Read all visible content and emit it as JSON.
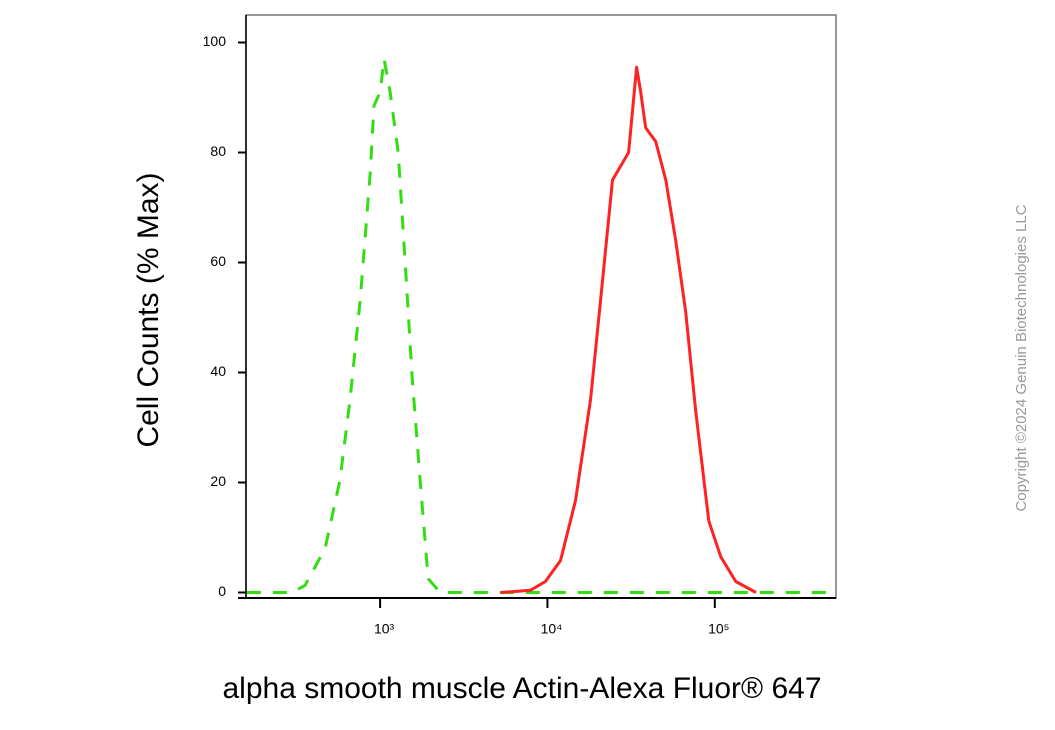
{
  "chart_data": {
    "type": "line",
    "xlabel": "alpha smooth muscle Actin-Alexa Fluor® 647",
    "ylabel": "Cell Counts (% Max)",
    "copyright": "Copyright ©2024 Genuin Biotechnologies LLC",
    "xscale": "log",
    "xlim": [
      158,
      530000
    ],
    "ylim": [
      -1,
      105
    ],
    "xticks": [
      {
        "value": 1000,
        "label": "10³"
      },
      {
        "value": 10000,
        "label": "10⁴"
      },
      {
        "value": 100000,
        "label": "10⁵"
      }
    ],
    "yticks": [
      0,
      20,
      40,
      60,
      80,
      100
    ],
    "series": [
      {
        "color": "#33dd11",
        "dash": true,
        "x": [
          160,
          297,
          356,
          469,
          575,
          661,
          759,
          871,
          920,
          1000,
          1057,
          1148,
          1282,
          1413,
          1556,
          1738,
          1938,
          2287,
          530000
        ],
        "values": [
          0,
          0,
          1.3,
          8,
          20.4,
          35,
          53,
          76,
          88.5,
          91,
          97,
          91,
          80,
          60,
          39,
          20,
          2.5,
          0,
          0
        ]
      },
      {
        "color": "#ff2222",
        "dash": false,
        "x": [
          5236,
          7907,
          9727,
          11970,
          14720,
          18080,
          20750,
          24490,
          30550,
          34120,
          36060,
          38640,
          44360,
          50930,
          58400,
          66990,
          76910,
          92050,
          108600,
          133600,
          176200
        ],
        "values": [
          0,
          0.4,
          2,
          5.8,
          16.7,
          35,
          53,
          75,
          80,
          95.5,
          91,
          84.5,
          82,
          75,
          64,
          51,
          33,
          13,
          6.5,
          2,
          0
        ]
      }
    ]
  }
}
